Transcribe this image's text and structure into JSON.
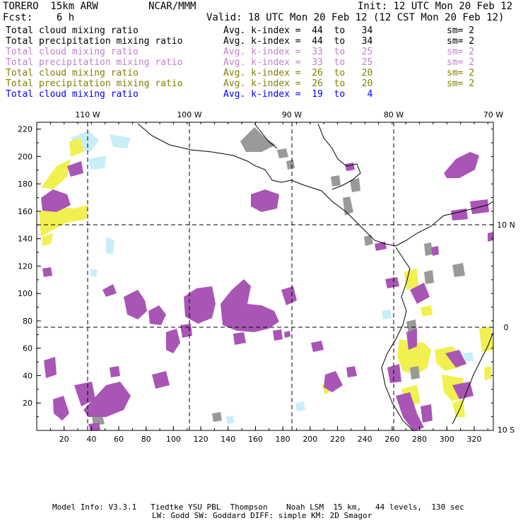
{
  "header": {
    "model": "TORERO  15km ARW",
    "org": "NCAR/MMM",
    "init": "Init: 12 UTC Mon 20 Feb 12",
    "fcst": "Fcst:    6 h",
    "valid": "Valid: 18 UTC Mon 20 Feb 12 (12 CST Mon 20 Feb 12)"
  },
  "legend": [
    {
      "label": "Total cloud mixing ratio",
      "kindex": "Avg. k-index =  44  to   34",
      "sm": "sm= 2",
      "color": "#000000"
    },
    {
      "label": "Total precipitation mixing ratio",
      "kindex": "Avg. k-index =  44  to   34",
      "sm": "sm= 2",
      "color": "#000000"
    },
    {
      "label": "Total cloud mixing ratio",
      "kindex": "Avg. k-index =  33  to   25",
      "sm": "sm= 2",
      "color": "#c080d0"
    },
    {
      "label": "Total precipitation mixing ratio",
      "kindex": "Avg. k-index =  33  to   25",
      "sm": "sm= 2",
      "color": "#c080d0"
    },
    {
      "label": "Total cloud mixing ratio",
      "kindex": "Avg. k-index =  26  to   20",
      "sm": "sm= 2",
      "color": "#808000"
    },
    {
      "label": "Total precipitation mixing ratio",
      "kindex": "Avg. k-index =  26  to   20",
      "sm": "sm= 2",
      "color": "#808000"
    },
    {
      "label": "Total cloud mixing ratio",
      "kindex": "Avg. k-index =  19  to    4",
      "sm": "",
      "color": "#0000ff"
    }
  ],
  "map": {
    "lon_labels": [
      "110 W",
      "100 W",
      "90 W",
      "80 W",
      "70 W"
    ],
    "lat_labels": [
      "10 N",
      "0",
      "10 S"
    ],
    "x_ticks": [
      "20",
      "40",
      "60",
      "80",
      "100",
      "120",
      "140",
      "160",
      "180",
      "200",
      "220",
      "240",
      "260",
      "280",
      "300",
      "320"
    ],
    "y_ticks": [
      "220",
      "200",
      "180",
      "160",
      "140",
      "120",
      "100",
      "80",
      "60",
      "40",
      "20"
    ],
    "colors": {
      "gray": "#999999",
      "purple": "#a855b5",
      "yellow": "#f0f050",
      "lightblue": "#c8eef8"
    }
  },
  "footer": {
    "line1": "Model Info: V3.3.1   Tiedtke YSU PBL  Thompson    Noah LSM  15 km,   44 levels,  130 sec",
    "line2": "LW: Godd SW: Goddard DIFF: simple KM: 2D Smagor"
  }
}
